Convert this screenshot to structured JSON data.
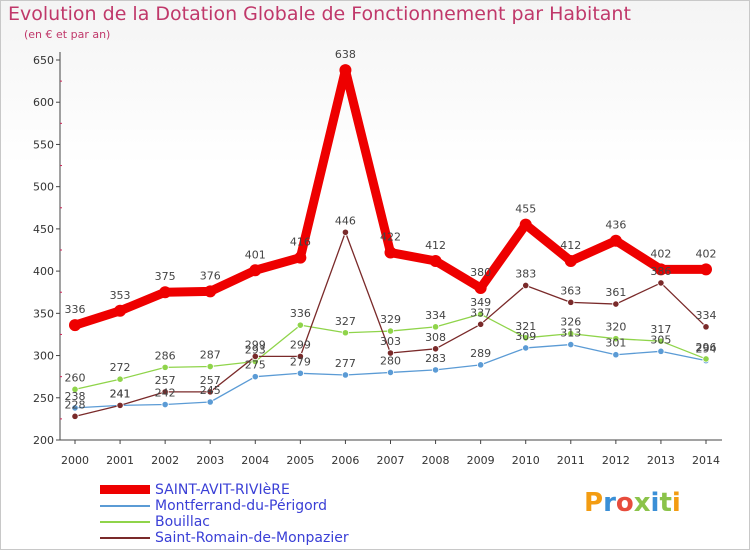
{
  "title": "Evolution de la Dotation Globale de Fonctionnement par Habitant",
  "subtitle": "(en € et par an)",
  "logo": "Proxiti",
  "colors": {
    "title": "#c0386a",
    "axis": "#444444",
    "grid_tick": "#cc2255"
  },
  "chart_data": {
    "type": "line",
    "title": "Evolution de la Dotation Globale de Fonctionnement par Habitant",
    "subtitle": "(en € et par an)",
    "xlabel": "",
    "ylabel": "",
    "categories": [
      "2000",
      "2001",
      "2002",
      "2003",
      "2004",
      "2005",
      "2006",
      "2007",
      "2008",
      "2009",
      "2010",
      "2011",
      "2012",
      "2013",
      "2014"
    ],
    "ylim": [
      200,
      650
    ],
    "yticks": [
      200,
      250,
      300,
      350,
      400,
      450,
      500,
      550,
      600,
      650
    ],
    "legend_position": "bottom-left",
    "series": [
      {
        "name": "SAINT-AVIT-RIVIèRE",
        "color": "#ee0000",
        "width": 9,
        "values": [
          336,
          353,
          375,
          376,
          401,
          416,
          638,
          422,
          412,
          380,
          455,
          412,
          436,
          402,
          402
        ]
      },
      {
        "name": "Montferrand-du-Périgord",
        "color": "#5b9bd5",
        "width": 1.3,
        "values": [
          238,
          241,
          242,
          245,
          275,
          279,
          277,
          280,
          283,
          289,
          309,
          313,
          301,
          305,
          294
        ]
      },
      {
        "name": "Bouillac",
        "color": "#8fd44a",
        "width": 1.3,
        "values": [
          260,
          272,
          286,
          287,
          293,
          336,
          327,
          329,
          334,
          349,
          321,
          326,
          320,
          317,
          296
        ]
      },
      {
        "name": "Saint-Romain-de-Monpazier",
        "color": "#7a2a2a",
        "width": 1.3,
        "values": [
          228,
          241,
          257,
          257,
          299,
          299,
          446,
          303,
          308,
          337,
          383,
          363,
          361,
          386,
          334
        ]
      }
    ]
  }
}
